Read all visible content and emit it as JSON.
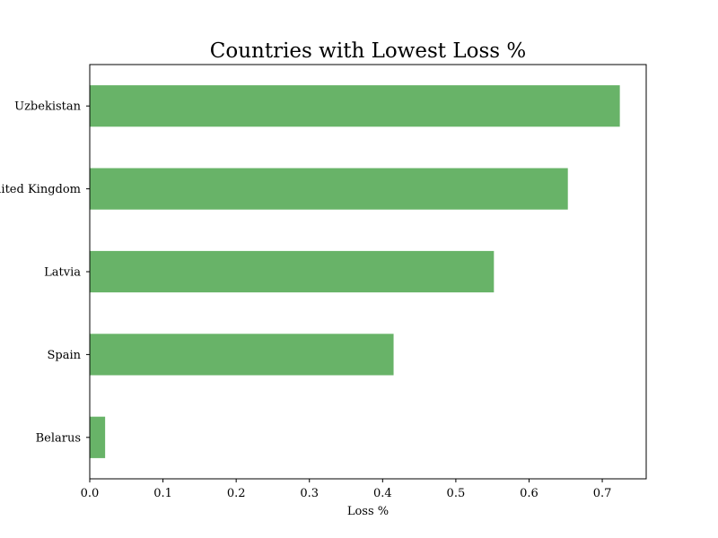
{
  "chart_data": {
    "type": "bar",
    "orientation": "horizontal",
    "title": "Countries with Lowest Loss %",
    "xlabel": "Loss %",
    "ylabel": "",
    "categories": [
      "Belarus",
      "Spain",
      "Latvia",
      "United Kingdom",
      "Uzbekistan"
    ],
    "values": [
      0.021,
      0.415,
      0.552,
      0.653,
      0.724
    ],
    "xlim": [
      0.0,
      0.76
    ],
    "xticks": [
      "0.0",
      "0.1",
      "0.2",
      "0.3",
      "0.4",
      "0.5",
      "0.6",
      "0.7"
    ],
    "bar_color": "#68b368",
    "grid": false,
    "legend": "none"
  }
}
